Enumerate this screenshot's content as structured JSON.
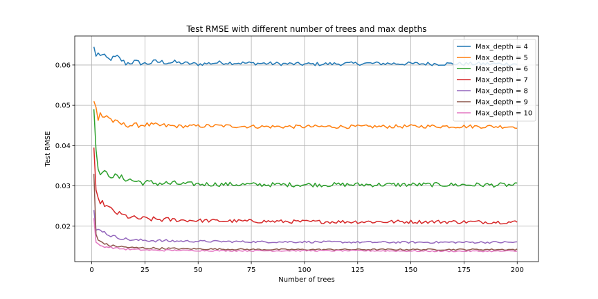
{
  "chart_data": {
    "type": "line",
    "title": "Test RMSE with different number of trees and max depths",
    "xlabel": "Number of trees",
    "ylabel": "Test RMSE",
    "xlim": [
      -8,
      210
    ],
    "ylim": [
      0.0112,
      0.0672
    ],
    "xticks": [
      0,
      25,
      50,
      75,
      100,
      125,
      150,
      175,
      200
    ],
    "yticks": [
      0.02,
      0.03,
      0.04,
      0.05,
      0.06
    ],
    "ytick_labels": [
      "0.02",
      "0.03",
      "0.04",
      "0.05",
      "0.06"
    ],
    "grid": true,
    "legend_position": "top-right",
    "x_range": [
      1,
      200
    ],
    "series": [
      {
        "name": "Max_depth = 4",
        "color": "#1f77b4",
        "knots": [
          [
            1,
            0.0645
          ],
          [
            2,
            0.0622
          ],
          [
            3,
            0.0628
          ],
          [
            5,
            0.0624
          ],
          [
            8,
            0.0614
          ],
          [
            12,
            0.062
          ],
          [
            16,
            0.0604
          ],
          [
            20,
            0.0608
          ],
          [
            25,
            0.0603
          ],
          [
            30,
            0.0608
          ],
          [
            40,
            0.0606
          ],
          [
            50,
            0.0602
          ],
          [
            60,
            0.0606
          ],
          [
            80,
            0.0604
          ],
          [
            100,
            0.0602
          ],
          [
            130,
            0.0604
          ],
          [
            160,
            0.0603
          ],
          [
            200,
            0.0603
          ]
        ],
        "noise": 0.00045
      },
      {
        "name": "Max_depth = 5",
        "color": "#ff7f0e",
        "knots": [
          [
            1,
            0.051
          ],
          [
            2,
            0.0495
          ],
          [
            3,
            0.046
          ],
          [
            4,
            0.048
          ],
          [
            5,
            0.047
          ],
          [
            7,
            0.0475
          ],
          [
            10,
            0.046
          ],
          [
            15,
            0.0452
          ],
          [
            20,
            0.045
          ],
          [
            25,
            0.0452
          ],
          [
            30,
            0.045
          ],
          [
            40,
            0.0448
          ],
          [
            60,
            0.0449
          ],
          [
            80,
            0.0447
          ],
          [
            100,
            0.0447
          ],
          [
            130,
            0.0447
          ],
          [
            160,
            0.0448
          ],
          [
            200,
            0.0447
          ]
        ],
        "noise": 0.00045
      },
      {
        "name": "Max_depth = 6",
        "color": "#2ca02c",
        "knots": [
          [
            1,
            0.049
          ],
          [
            2,
            0.039
          ],
          [
            3,
            0.0335
          ],
          [
            5,
            0.0333
          ],
          [
            8,
            0.0328
          ],
          [
            12,
            0.0322
          ],
          [
            16,
            0.0318
          ],
          [
            20,
            0.0312
          ],
          [
            25,
            0.0308
          ],
          [
            30,
            0.0307
          ],
          [
            40,
            0.0305
          ],
          [
            60,
            0.0304
          ],
          [
            80,
            0.0303
          ],
          [
            100,
            0.0303
          ],
          [
            130,
            0.0303
          ],
          [
            160,
            0.0303
          ],
          [
            200,
            0.0302
          ]
        ],
        "noise": 0.00055
      },
      {
        "name": "Max_depth = 7",
        "color": "#d62728",
        "knots": [
          [
            1,
            0.0395
          ],
          [
            2,
            0.029
          ],
          [
            3,
            0.0265
          ],
          [
            5,
            0.0258
          ],
          [
            8,
            0.0245
          ],
          [
            12,
            0.0232
          ],
          [
            16,
            0.0225
          ],
          [
            20,
            0.022
          ],
          [
            25,
            0.0218
          ],
          [
            30,
            0.0217
          ],
          [
            40,
            0.0215
          ],
          [
            60,
            0.0213
          ],
          [
            80,
            0.0212
          ],
          [
            100,
            0.0211
          ],
          [
            130,
            0.0211
          ],
          [
            160,
            0.0211
          ],
          [
            200,
            0.021
          ]
        ],
        "noise": 0.00045
      },
      {
        "name": "Max_depth = 8",
        "color": "#9467bd",
        "knots": [
          [
            1,
            0.024
          ],
          [
            2,
            0.019
          ],
          [
            4,
            0.0192
          ],
          [
            8,
            0.0178
          ],
          [
            12,
            0.0172
          ],
          [
            16,
            0.0168
          ],
          [
            20,
            0.0165
          ],
          [
            25,
            0.0165
          ],
          [
            30,
            0.0164
          ],
          [
            40,
            0.0163
          ],
          [
            60,
            0.0162
          ],
          [
            80,
            0.0161
          ],
          [
            100,
            0.0161
          ],
          [
            130,
            0.016
          ],
          [
            160,
            0.016
          ],
          [
            200,
            0.016
          ]
        ],
        "noise": 0.00025
      },
      {
        "name": "Max_depth = 9",
        "color": "#8c564b",
        "knots": [
          [
            1,
            0.033
          ],
          [
            2,
            0.018
          ],
          [
            3,
            0.0165
          ],
          [
            5,
            0.016
          ],
          [
            8,
            0.0152
          ],
          [
            12,
            0.015
          ],
          [
            16,
            0.0148
          ],
          [
            20,
            0.0146
          ],
          [
            25,
            0.0146
          ],
          [
            30,
            0.0145
          ],
          [
            40,
            0.0144
          ],
          [
            60,
            0.0143
          ],
          [
            80,
            0.0142
          ],
          [
            100,
            0.0142
          ],
          [
            130,
            0.0142
          ],
          [
            160,
            0.0142
          ],
          [
            200,
            0.0142
          ]
        ],
        "noise": 0.00018
      },
      {
        "name": "Max_depth = 10",
        "color": "#e377c2",
        "knots": [
          [
            1,
            0.022
          ],
          [
            2,
            0.016
          ],
          [
            3,
            0.0155
          ],
          [
            5,
            0.015
          ],
          [
            8,
            0.0148
          ],
          [
            12,
            0.0145
          ],
          [
            16,
            0.0143
          ],
          [
            20,
            0.0142
          ],
          [
            25,
            0.0141
          ],
          [
            30,
            0.014
          ],
          [
            40,
            0.014
          ],
          [
            60,
            0.0139
          ],
          [
            80,
            0.0139
          ],
          [
            100,
            0.0139
          ],
          [
            130,
            0.0139
          ],
          [
            160,
            0.0138
          ],
          [
            200,
            0.0138
          ]
        ],
        "noise": 0.00015
      }
    ]
  }
}
